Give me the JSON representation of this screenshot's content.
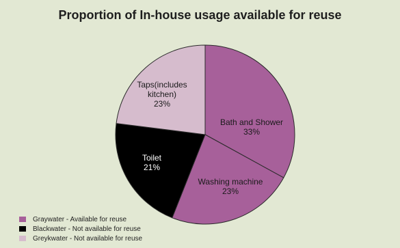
{
  "chart_data": {
    "type": "pie",
    "title": "Proportion of In-house usage available for reuse",
    "slices": [
      {
        "label_lines": [
          "Bath and Shower",
          "33%"
        ],
        "value": 33,
        "group": "graywater",
        "color": "#a7609a"
      },
      {
        "label_lines": [
          "Washing machine",
          "23%"
        ],
        "value": 23,
        "group": "graywater",
        "color": "#a7609a"
      },
      {
        "label_lines": [
          "Toilet",
          "21%"
        ],
        "value": 21,
        "group": "blackwater",
        "color": "#000000"
      },
      {
        "label_lines": [
          "Taps(includes",
          "kitchen)",
          "23%"
        ],
        "value": 23,
        "group": "greykwater",
        "color": "#d6bccd"
      }
    ],
    "legend": {
      "placement": "bottom-left",
      "items": [
        {
          "label": "Graywater - Available for reuse",
          "color": "#a7609a"
        },
        {
          "label": "Blackwater - Not available for reuse",
          "color": "#000000"
        },
        {
          "label": "Greykwater - Not available for reuse",
          "color": "#d6bccd"
        }
      ]
    }
  }
}
